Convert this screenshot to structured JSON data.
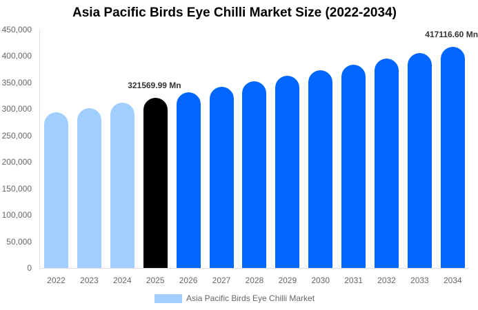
{
  "chart_data": {
    "type": "bar",
    "title": "Asia Pacific Birds Eye Chilli Market Size (2022-2034)",
    "xlabel": "",
    "ylabel": "",
    "ylim": [
      0,
      450000
    ],
    "yticks": [
      "0",
      "50,000",
      "100,000",
      "150,000",
      "200,000",
      "250,000",
      "300,000",
      "350,000",
      "400,000",
      "450,000"
    ],
    "categories": [
      "2022",
      "2023",
      "2024",
      "2025",
      "2026",
      "2027",
      "2028",
      "2029",
      "2030",
      "2031",
      "2032",
      "2033",
      "2034"
    ],
    "series": [
      {
        "name": "Asia Pacific Birds Eye Chilli Market",
        "values": [
          294000,
          302000,
          311700,
          321569.99,
          331500,
          341800,
          352200,
          362700,
          373400,
          384300,
          395300,
          406200,
          417116.6
        ]
      }
    ],
    "bar_colors": [
      "#a0cfff",
      "#a0cfff",
      "#a0cfff",
      "#000000",
      "#0066ff",
      "#0066ff",
      "#0066ff",
      "#0066ff",
      "#0066ff",
      "#0066ff",
      "#0066ff",
      "#0066ff",
      "#0066ff"
    ],
    "annotations": [
      {
        "category": "2025",
        "text": "321569.99 Mn"
      },
      {
        "category": "2034",
        "text": "417116.60 Mn"
      }
    ],
    "grid": false,
    "legend_position": "bottom"
  },
  "legend": {
    "label": "Asia Pacific Birds Eye Chilli Market",
    "color": "#a0cfff"
  }
}
